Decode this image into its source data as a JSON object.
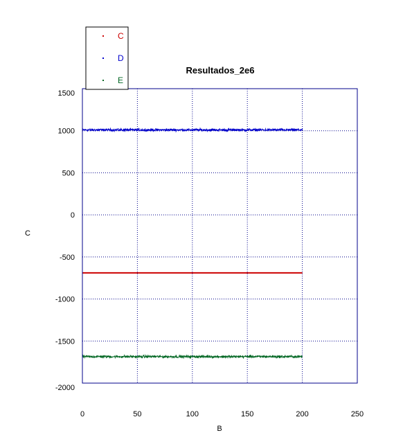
{
  "chart_data": {
    "type": "scatter",
    "title": "Resultados_2e6",
    "xlabel": "B",
    "ylabel": "C",
    "xlim": [
      0,
      250
    ],
    "ylim": [
      -2000,
      1500
    ],
    "xticks": [
      0,
      50,
      100,
      150,
      200,
      250
    ],
    "yticks": [
      1500,
      1000,
      500,
      0,
      -500,
      -1000,
      -1500,
      -2000
    ],
    "grid": true,
    "legend_position": "top-left, above plot",
    "x_range_of_data": [
      0,
      200
    ],
    "series": [
      {
        "name": "C",
        "color": "#cc0000",
        "mean": -690,
        "noise": 0
      },
      {
        "name": "D",
        "color": "#0000cc",
        "mean": 1010,
        "noise": 22
      },
      {
        "name": "E",
        "color": "#006622",
        "mean": -1685,
        "noise": 22
      }
    ],
    "frame_color": "#00008b",
    "grid_color": "#00008b"
  }
}
